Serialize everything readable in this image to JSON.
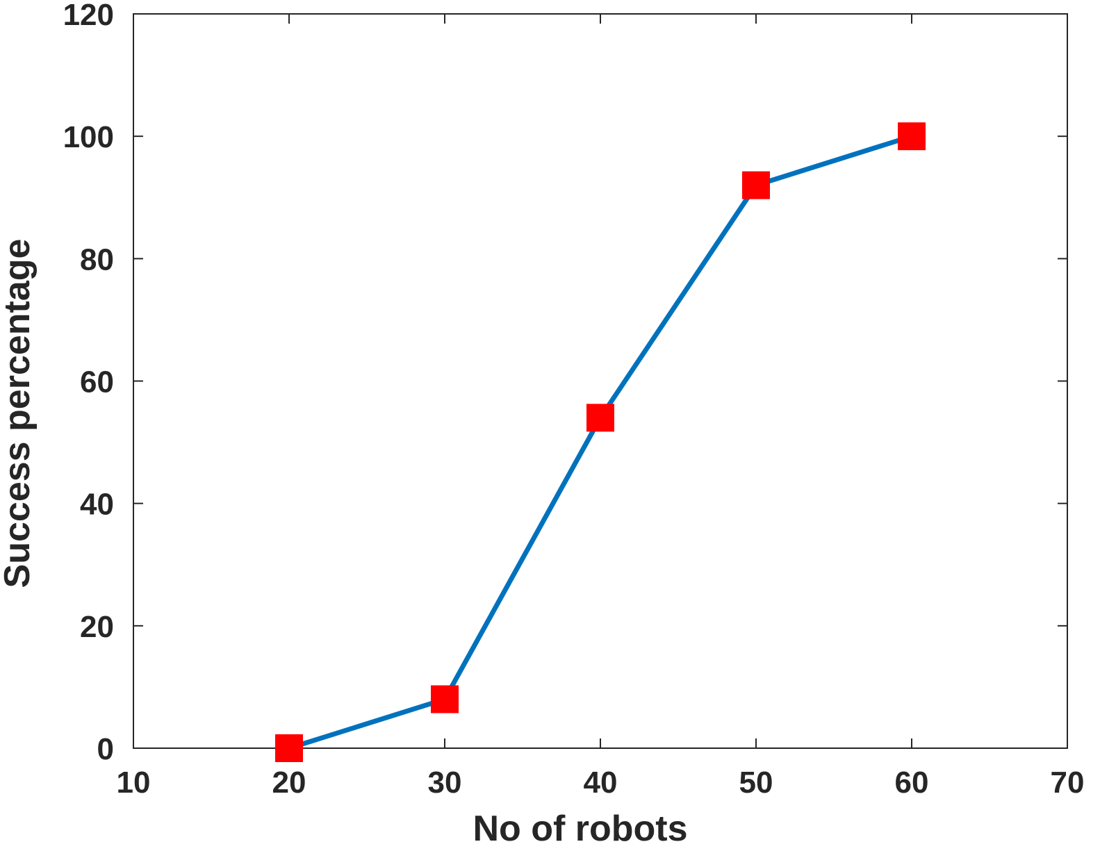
{
  "chart_data": {
    "type": "line",
    "title": "",
    "xlabel": "No of robots",
    "ylabel": "Success percentage",
    "xlim": [
      10,
      70
    ],
    "ylim": [
      0,
      120
    ],
    "x_ticks": [
      10,
      20,
      30,
      40,
      50,
      60,
      70
    ],
    "y_ticks": [
      0,
      20,
      40,
      60,
      80,
      100,
      120
    ],
    "grid": false,
    "series": [
      {
        "x": [
          20,
          30,
          40,
          50,
          60
        ],
        "y": [
          0,
          8,
          54,
          92,
          100
        ],
        "line_color": "#0072BD",
        "marker": "square",
        "marker_color": "#FF0000"
      }
    ]
  },
  "colors": {
    "axis": "#262626",
    "line": "#0072BD",
    "marker": "#FF0000",
    "background": "#FFFFFF"
  }
}
